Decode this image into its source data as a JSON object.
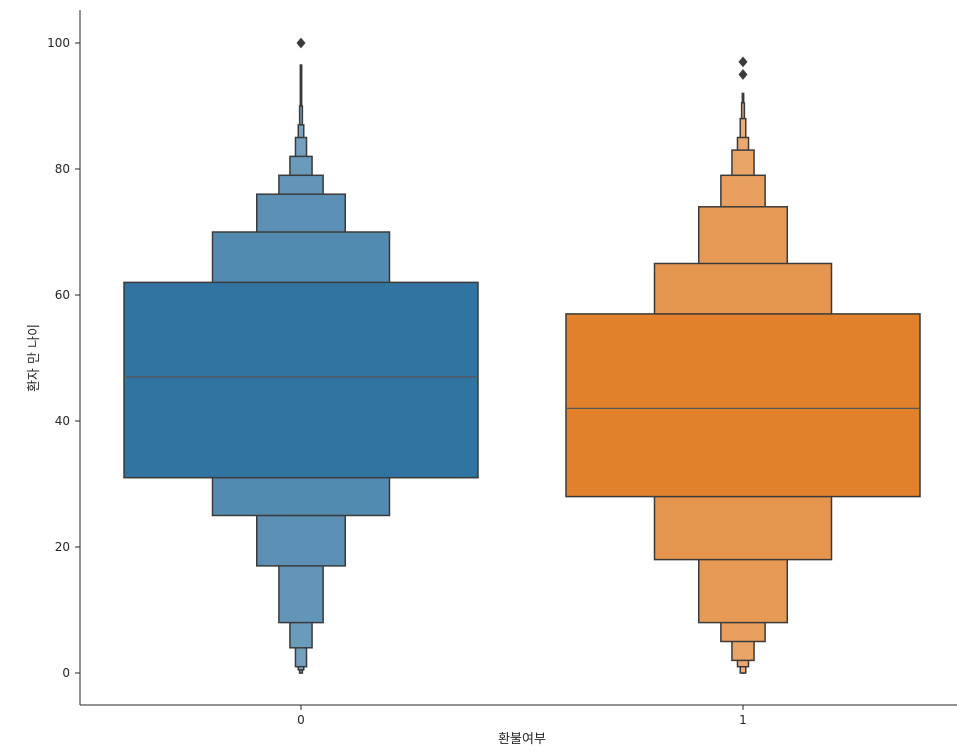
{
  "chart_data": {
    "type": "boxen",
    "title": "",
    "xlabel": "환불여부",
    "ylabel": "환자 만 나이",
    "categories": [
      "0",
      "1"
    ],
    "ylim": [
      -5,
      105
    ],
    "yticks": [
      0,
      20,
      40,
      60,
      80,
      100
    ],
    "grid": false,
    "series": [
      {
        "category": "0",
        "color": "#3274a1",
        "median": 47,
        "letter_values": [
          [
            31,
            62
          ],
          [
            25,
            70
          ],
          [
            17,
            76
          ],
          [
            8,
            79
          ],
          [
            4,
            82
          ],
          [
            1,
            85
          ],
          [
            0.5,
            87
          ],
          [
            0,
            90
          ],
          [
            0,
            96.5
          ]
        ],
        "outliers": [
          100
        ]
      },
      {
        "category": "1",
        "color": "#e1812c",
        "median": 42,
        "letter_values": [
          [
            28,
            57
          ],
          [
            18,
            65
          ],
          [
            8,
            74
          ],
          [
            5,
            79
          ],
          [
            2,
            83
          ],
          [
            1,
            85
          ],
          [
            0,
            88
          ],
          [
            0,
            90.5
          ],
          [
            0,
            92
          ]
        ],
        "outliers": [
          95,
          97
        ]
      }
    ]
  }
}
